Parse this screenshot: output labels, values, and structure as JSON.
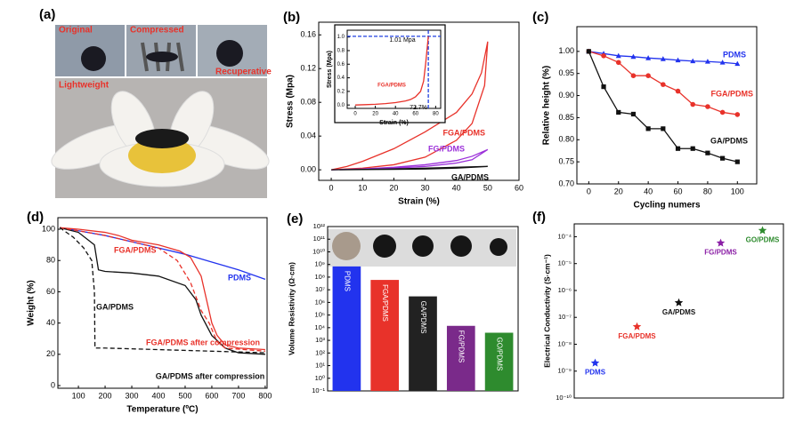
{
  "photo_panel": {
    "label": "(a)",
    "captions": [
      "Original",
      "Compressed",
      "Recuperative",
      "Lightweight"
    ]
  },
  "chart_data": [
    {
      "type": "line",
      "panel_label": "(b)",
      "xlabel": "Strain (%)",
      "ylabel": "Stress (Mpa)",
      "xlim": [
        -4,
        60
      ],
      "ylim": [
        -0.0125,
        0.175
      ],
      "xticks": [
        0,
        10,
        20,
        30,
        40,
        50,
        60
      ],
      "yticks": [
        {
          "value": 0,
          "label": "0.00"
        },
        0.04,
        0.08,
        0.12,
        0.16
      ],
      "series": [
        {
          "name": "FGA/PDMS",
          "color": "#e8322a",
          "x": [
            0,
            5,
            10,
            20,
            30,
            40,
            45,
            48,
            50,
            49,
            45,
            40,
            30,
            20,
            10,
            5,
            0
          ],
          "values": [
            0,
            0.004,
            0.01,
            0.025,
            0.045,
            0.068,
            0.09,
            0.115,
            0.152,
            0.1,
            0.055,
            0.035,
            0.015,
            0.006,
            0.002,
            0.001,
            0
          ]
        },
        {
          "name": "FG/PDMS",
          "color": "#9b30d9",
          "x": [
            0,
            10,
            20,
            30,
            40,
            45,
            50,
            45,
            40,
            30,
            20,
            10,
            0
          ],
          "values": [
            0,
            0.001,
            0.003,
            0.006,
            0.011,
            0.016,
            0.024,
            0.012,
            0.008,
            0.004,
            0.002,
            0.0005,
            0
          ]
        },
        {
          "name": "GA/PDMS",
          "color": "#111111",
          "x": [
            0,
            10,
            20,
            30,
            40,
            50,
            40,
            30,
            20,
            10,
            0
          ],
          "values": [
            0,
            0.0003,
            0.0006,
            0.001,
            0.002,
            0.004,
            0.003,
            0.002,
            0.001,
            0.0005,
            0
          ]
        }
      ]
    },
    {
      "type": "line",
      "xlabel": "Strain (%)",
      "ylabel": "Stress (Mpa)",
      "xlim": [
        -8,
        85
      ],
      "ylim": [
        -0.05,
        1.1
      ],
      "xticks": [
        0,
        20,
        40,
        60,
        80
      ],
      "yticks": [
        {
          "value": 0,
          "label": "0.0"
        },
        0.2,
        0.4,
        0.6,
        0.8,
        {
          "value": 1,
          "label": "1.0"
        }
      ],
      "annotations": [
        {
          "text": "1.01 Mpa",
          "value": 1.01,
          "axis": "y"
        },
        {
          "text": "72.7%",
          "value": 72.7,
          "axis": "x"
        }
      ],
      "series": [
        {
          "name": "FGA/PDMS",
          "color": "#e8322a",
          "x": [
            0,
            10,
            20,
            30,
            40,
            50,
            55,
            60,
            65,
            68,
            70,
            72.7
          ],
          "values": [
            0,
            0.005,
            0.01,
            0.02,
            0.035,
            0.06,
            0.08,
            0.12,
            0.2,
            0.35,
            0.6,
            1.01
          ]
        }
      ]
    },
    {
      "type": "line",
      "panel_label": "(c)",
      "xlabel": "Cycling numers",
      "ylabel": "Relative height (%)",
      "x": [
        0,
        10,
        20,
        30,
        40,
        50,
        60,
        70,
        80,
        90,
        100
      ],
      "xlim": [
        -8,
        113
      ],
      "ylim": [
        0.7,
        1.056
      ],
      "xticks": [
        0,
        20,
        40,
        60,
        80,
        100
      ],
      "yticks": [
        {
          "value": 0.7,
          "label": "0.70"
        },
        0.75,
        {
          "value": 0.8,
          "label": "0.80"
        },
        0.85,
        {
          "value": 0.9,
          "label": "0.90"
        },
        0.95,
        {
          "value": 1,
          "label": "1.00"
        }
      ],
      "series": [
        {
          "name": "PDMS",
          "color": "#2233ee",
          "marker": "triangle",
          "values": [
            1.0,
            0.995,
            0.99,
            0.988,
            0.985,
            0.983,
            0.98,
            0.978,
            0.977,
            0.975,
            0.972
          ]
        },
        {
          "name": "FGA/PDMS",
          "color": "#e8322a",
          "marker": "circle",
          "values": [
            1.0,
            0.99,
            0.975,
            0.945,
            0.945,
            0.925,
            0.91,
            0.88,
            0.875,
            0.862,
            0.857
          ]
        },
        {
          "name": "GA/PDMS",
          "color": "#111111",
          "marker": "square",
          "values": [
            1.0,
            0.92,
            0.862,
            0.858,
            0.825,
            0.825,
            0.78,
            0.78,
            0.77,
            0.758,
            0.75
          ]
        }
      ]
    },
    {
      "type": "line",
      "panel_label": "(d)",
      "xlabel": "Temperature (ºC)",
      "ylabel": "Weight (%)",
      "xlim": [
        23,
        807
      ],
      "ylim": [
        -1.7,
        107.4
      ],
      "xticks": [
        100,
        200,
        300,
        400,
        500,
        600,
        700,
        800
      ],
      "yticks": [
        0,
        20,
        40,
        60,
        80,
        100
      ],
      "series": [
        {
          "name": "PDMS",
          "color": "#2233ee",
          "x": [
            30,
            100,
            200,
            300,
            400,
            500,
            600,
            700,
            800
          ],
          "values": [
            101,
            99,
            96,
            92,
            88,
            84,
            79,
            74,
            68
          ]
        },
        {
          "name": "FGA/PDMS",
          "color": "#e8322a",
          "x": [
            30,
            100,
            200,
            250,
            300,
            400,
            480,
            520,
            560,
            580,
            600,
            620,
            650,
            700,
            800
          ],
          "values": [
            101,
            100,
            98,
            96,
            93,
            90,
            86,
            82,
            70,
            55,
            40,
            32,
            26,
            24,
            23
          ]
        },
        {
          "name": "GA/PDMS",
          "color": "#111111",
          "x": [
            30,
            100,
            160,
            175,
            200,
            300,
            400,
            500,
            540,
            560,
            600,
            650,
            700,
            800
          ],
          "values": [
            101,
            98,
            90,
            74,
            73,
            72,
            70,
            64,
            55,
            45,
            32,
            24,
            21,
            20
          ]
        },
        {
          "name": "FGA/PDMS after compression",
          "color": "#e8322a",
          "dash": true,
          "x": [
            30,
            100,
            200,
            300,
            400,
            470,
            520,
            560,
            590,
            620,
            650,
            800
          ],
          "values": [
            101,
            99,
            96,
            92,
            88,
            80,
            66,
            48,
            40,
            28,
            24,
            22
          ]
        },
        {
          "name": "GA/PDMS after compression",
          "color": "#111111",
          "dash": true,
          "x": [
            30,
            80,
            120,
            150,
            160,
            162,
            200,
            400,
            600,
            800
          ],
          "values": [
            101,
            95,
            88,
            80,
            60,
            24,
            24,
            23,
            22,
            21
          ]
        }
      ]
    },
    {
      "type": "bar",
      "panel_label": "(e)",
      "ylabel": "Volume Resistivity (Ω·cm)",
      "log_scale": true,
      "categories": [
        "PDMS",
        "FGA/PDMS",
        "GA/PDMS",
        "FG/PDMS",
        "GO/PDMS"
      ],
      "values": [
        700000000,
        60000000,
        3000000,
        14000,
        4000
      ],
      "colors": [
        "#2233ee",
        "#e8322a",
        "#222222",
        "#7a2a8a",
        "#2e8b2e"
      ],
      "ylim": [
        0.1,
        1000000000000.0
      ],
      "yticks": [
        {
          "value": 0.1,
          "label": "10⁻¹"
        },
        {
          "value": 1,
          "label": "10⁰"
        },
        {
          "value": 10,
          "label": "10¹"
        },
        {
          "value": 100,
          "label": "10²"
        },
        {
          "value": 1000,
          "label": "10³"
        },
        {
          "value": 10000,
          "label": "10⁴"
        },
        {
          "value": 100000,
          "label": "10⁵"
        },
        {
          "value": 1000000,
          "label": "10⁶"
        },
        {
          "value": 10000000,
          "label": "10⁷"
        },
        {
          "value": 100000000,
          "label": "10⁸"
        },
        {
          "value": 1000000000,
          "label": "10⁹"
        },
        {
          "value": 10000000000,
          "label": "10¹⁰"
        },
        {
          "value": 100000000000,
          "label": "10¹¹"
        },
        {
          "value": 1000000000000,
          "label": "10¹²"
        }
      ]
    },
    {
      "type": "scatter",
      "panel_label": "(f)",
      "ylabel": "Electrical Conductivity (S·cm⁻¹)",
      "log_scale": true,
      "categories": [
        "PDMS",
        "FGA/PDMS",
        "GA/PDMS",
        "FG/PDMS",
        "GO/PDMS"
      ],
      "values": [
        2e-09,
        4.5e-08,
        3.5e-07,
        5.8e-05,
        0.00017
      ],
      "colors": [
        "#2233ee",
        "#e8322a",
        "#111111",
        "#8b1fa6",
        "#2e8b2e"
      ],
      "ylim": [
        1e-10,
        0.0003
      ],
      "yticks": [
        {
          "value": 1e-10,
          "label": "10⁻¹⁰"
        },
        {
          "value": 1e-09,
          "label": "10⁻⁹"
        },
        {
          "value": 1e-08,
          "label": "10⁻⁸"
        },
        {
          "value": 1e-07,
          "label": "10⁻⁷"
        },
        {
          "value": 1e-06,
          "label": "10⁻⁶"
        },
        {
          "value": 1e-05,
          "label": "10⁻⁵"
        },
        {
          "value": 0.0001,
          "label": "10⁻⁴"
        }
      ]
    }
  ]
}
